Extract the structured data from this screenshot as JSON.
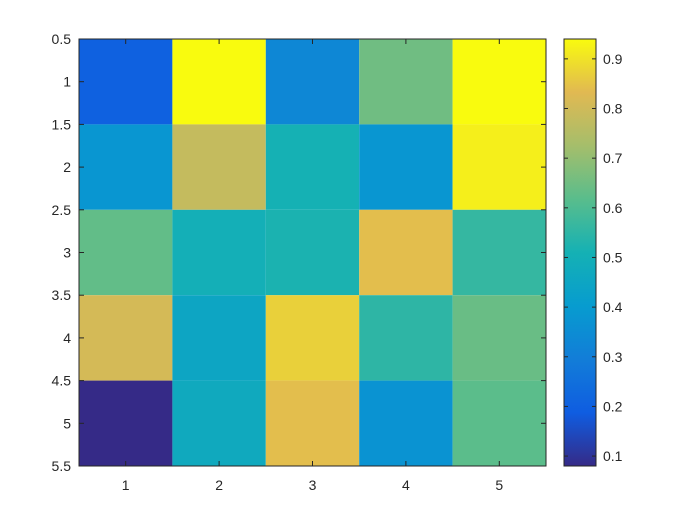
{
  "chart_data": {
    "type": "heatmap",
    "x": [
      1,
      2,
      3,
      4,
      5
    ],
    "y": [
      1,
      2,
      3,
      4,
      5
    ],
    "xlim": [
      0.5,
      5.5
    ],
    "ylim": [
      0.5,
      5.5
    ],
    "y_direction": "reversed",
    "xticks": [
      "1",
      "2",
      "3",
      "4",
      "5"
    ],
    "yticks": [
      "0.5",
      "1",
      "1.5",
      "2",
      "2.5",
      "3",
      "3.5",
      "4",
      "4.5",
      "5",
      "5.5"
    ],
    "values": [
      [
        0.2,
        0.94,
        0.33,
        0.65,
        0.94
      ],
      [
        0.38,
        0.78,
        0.51,
        0.38,
        0.92
      ],
      [
        0.63,
        0.5,
        0.52,
        0.84,
        0.56
      ],
      [
        0.81,
        0.45,
        0.87,
        0.55,
        0.64
      ],
      [
        0.08,
        0.47,
        0.84,
        0.37,
        0.62
      ]
    ],
    "colorbar": {
      "range": [
        0.08,
        0.94
      ],
      "ticks": [
        "0.1",
        "0.2",
        "0.3",
        "0.4",
        "0.5",
        "0.6",
        "0.7",
        "0.8",
        "0.9"
      ],
      "tick_values": [
        0.1,
        0.2,
        0.3,
        0.4,
        0.5,
        0.6,
        0.7,
        0.8,
        0.9
      ],
      "colormap": "parula",
      "placement": "right"
    },
    "grid": false,
    "title": "",
    "xlabel": "",
    "ylabel": ""
  }
}
